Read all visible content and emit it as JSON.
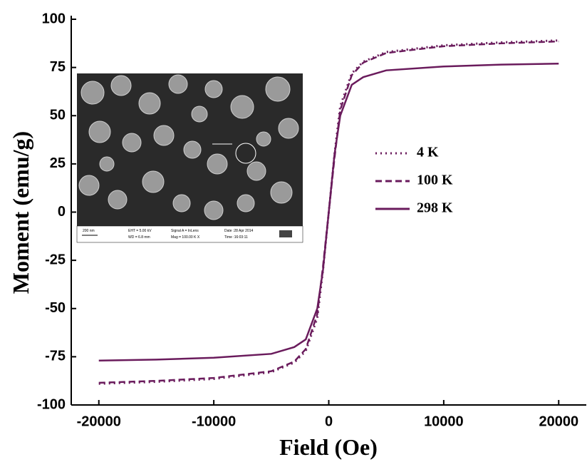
{
  "chart_data": {
    "type": "line",
    "xlabel": "Field (Oe)",
    "ylabel": "Moment (emu/g)",
    "x": [
      -20000,
      -15000,
      -10000,
      -5000,
      -3000,
      -2000,
      -1000,
      -500,
      0,
      500,
      1000,
      2000,
      3000,
      5000,
      10000,
      15000,
      20000
    ],
    "series": [
      {
        "name": "4 K",
        "color": "#6a1b5c",
        "dash": "dotted",
        "values": [
          -89,
          -88,
          -86.5,
          -83,
          -78,
          -72,
          -55,
          -30,
          0,
          30,
          55,
          72,
          78,
          83,
          86.5,
          88,
          89
        ]
      },
      {
        "name": "100 K",
        "color": "#6a1b5c",
        "dash": "dashed",
        "values": [
          -88.5,
          -87.5,
          -86,
          -82.5,
          -77.5,
          -71,
          -53,
          -28,
          0,
          28,
          53,
          71,
          77.5,
          82.5,
          86,
          87.5,
          88.5
        ]
      },
      {
        "name": "298 K",
        "color": "#6a1b5c",
        "dash": "solid",
        "values": [
          -77,
          -76.5,
          -75.5,
          -73.5,
          -70,
          -66,
          -50,
          -30,
          0,
          30,
          50,
          66,
          70,
          73.5,
          75.5,
          76.5,
          77
        ]
      }
    ],
    "xlim": [
      -22400,
      22400
    ],
    "ylim": [
      -100,
      100
    ],
    "xticks": [
      -20000,
      -10000,
      0,
      10000,
      20000
    ],
    "yticks": [
      -100,
      -75,
      -50,
      -25,
      0,
      25,
      50,
      75,
      100
    ],
    "legend": "right",
    "annotations": [
      "200 nm",
      "EHT = 5.00 kV",
      "WD = 6.8 mm",
      "Signal A = InLens",
      "Mag = 100.00 K X",
      "Date :28 Apr 2014",
      "Time :16:03:11"
    ]
  }
}
